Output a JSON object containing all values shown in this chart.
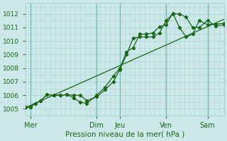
{
  "bg_color": "#cce8e8",
  "grid_color": "#aad4d4",
  "line_color": "#1a6618",
  "marker_color": "#1a6618",
  "xlim": [
    0,
    120
  ],
  "ylim": [
    1004.5,
    1012.8
  ],
  "yticks": [
    1005,
    1006,
    1007,
    1008,
    1009,
    1010,
    1011,
    1012
  ],
  "ytick_labels": [
    "1005",
    "1006",
    "1007",
    "1008",
    "1009",
    "1010",
    "1011",
    "1012"
  ],
  "xtick_positions": [
    3,
    43,
    57,
    85,
    110
  ],
  "xtick_labels": [
    "Mer",
    "Dim",
    "Jeu",
    "Ven",
    "Sam"
  ],
  "vline_positions": [
    3,
    43,
    57,
    85,
    110
  ],
  "xlabel": "Pression niveau de la mer( hPa )",
  "series1_x": [
    0,
    3,
    6,
    9,
    13,
    17,
    21,
    25,
    29,
    33,
    37,
    43,
    48,
    53,
    57,
    61,
    65,
    69,
    73,
    77,
    81,
    85,
    89,
    93,
    97,
    101,
    105,
    110,
    115,
    120
  ],
  "series1_y": [
    1005.1,
    1005.15,
    1005.4,
    1005.6,
    1006.05,
    1006.0,
    1006.0,
    1006.05,
    1006.0,
    1006.0,
    1005.6,
    1005.9,
    1006.4,
    1007.0,
    1007.9,
    1009.0,
    1010.2,
    1010.3,
    1010.3,
    1010.3,
    1010.6,
    1011.5,
    1012.0,
    1012.0,
    1011.75,
    1011.0,
    1011.0,
    1011.5,
    1011.1,
    1011.2
  ],
  "series2_x": [
    0,
    3,
    6,
    9,
    13,
    17,
    21,
    25,
    29,
    33,
    37,
    43,
    48,
    53,
    57,
    61,
    65,
    69,
    73,
    77,
    81,
    85,
    89,
    93,
    97,
    101,
    105,
    110,
    115,
    120
  ],
  "series2_y": [
    1005.1,
    1005.15,
    1005.4,
    1005.6,
    1006.05,
    1006.0,
    1006.0,
    1006.05,
    1005.8,
    1005.5,
    1005.4,
    1006.0,
    1006.6,
    1007.4,
    1008.0,
    1009.2,
    1009.5,
    1010.5,
    1010.5,
    1010.6,
    1011.05,
    1011.2,
    1012.05,
    1011.0,
    1010.3,
    1010.5,
    1011.5,
    1011.2,
    1011.25,
    1011.3
  ],
  "series3_x": [
    0,
    120
  ],
  "series3_y": [
    1005.1,
    1011.6
  ]
}
